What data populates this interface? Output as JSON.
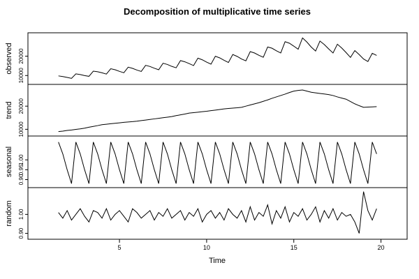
{
  "chart_data": {
    "type": "line",
    "title": "Decomposition of multiplicative time series",
    "xlabel": "Time",
    "xlim": [
      -0.25,
      21.5
    ],
    "xticks": [
      5,
      10,
      15,
      20
    ],
    "color": "#000000",
    "x": [
      1.5,
      1.75,
      2,
      2.25,
      2.5,
      2.75,
      3,
      3.25,
      3.5,
      3.75,
      4,
      4.25,
      4.5,
      4.75,
      5,
      5.25,
      5.5,
      5.75,
      6,
      6.25,
      6.5,
      6.75,
      7,
      7.25,
      7.5,
      7.75,
      8,
      8.25,
      8.5,
      8.75,
      9,
      9.25,
      9.5,
      9.75,
      10,
      10.25,
      10.5,
      10.75,
      11,
      11.25,
      11.5,
      11.75,
      12,
      12.25,
      12.5,
      12.75,
      13,
      13.25,
      13.5,
      13.75,
      14,
      14.25,
      14.5,
      14.75,
      15,
      15.25,
      15.5,
      15.75,
      16,
      16.25,
      16.5,
      16.75,
      17,
      17.25,
      17.5,
      17.75,
      18,
      18.25,
      18.5,
      18.75,
      19,
      19.25,
      19.5,
      19.75
    ],
    "series": [
      {
        "name": "observed",
        "ylim": [
          6500,
          31000
        ],
        "yticks": [
          10000,
          20000
        ],
        "values": [
          9810,
          9480,
          9025,
          8540,
          10850,
          10510,
          9980,
          9590,
          12260,
          11950,
          11400,
          10740,
          13520,
          12980,
          12160,
          11440,
          14330,
          13700,
          12830,
          12100,
          15260,
          14680,
          13780,
          12980,
          16350,
          15710,
          14730,
          13990,
          17710,
          17100,
          16150,
          15140,
          18970,
          18130,
          16910,
          15880,
          19950,
          19110,
          17860,
          16720,
          20870,
          19880,
          18530,
          17600,
          22350,
          21630,
          20430,
          19450,
          24740,
          24100,
          22800,
          21650,
          27470,
          26680,
          25180,
          23580,
          29430,
          27300,
          24700,
          22660,
          27800,
          26010,
          23750,
          21650,
          26160,
          24210,
          21850,
          19360,
          22890,
          20810,
          18530,
          17250,
          21470,
          20390
        ]
      },
      {
        "name": "trend",
        "ylim": [
          8000,
          28500
        ],
        "yticks": [
          10000,
          20000
        ],
        "values": [
          9000,
          9200,
          9500,
          9700,
          9950,
          10200,
          10500,
          10900,
          11250,
          11600,
          12000,
          12200,
          12400,
          12600,
          12800,
          13000,
          13150,
          13300,
          13500,
          13750,
          14000,
          14250,
          14500,
          14750,
          15000,
          15250,
          15500,
          15900,
          16250,
          16600,
          17000,
          17200,
          17400,
          17600,
          17800,
          18050,
          18300,
          18550,
          18800,
          19000,
          19150,
          19300,
          19500,
          20000,
          20500,
          21000,
          21500,
          22100,
          22700,
          23400,
          24000,
          24600,
          25200,
          25900,
          26500,
          26800,
          27000,
          26500,
          26000,
          25750,
          25500,
          25250,
          25000,
          24600,
          24000,
          23500,
          23000,
          22000,
          21000,
          20200,
          19500,
          19600,
          19700,
          19800
        ]
      },
      {
        "name": "seasonal",
        "ylim": [
          0.87,
          1.11
        ],
        "yticks": [
          {
            "value": 0.9,
            "label": "0.90"
          },
          {
            "value": 0.95,
            "label": "0.95"
          },
          {
            "value": 1.0,
            "label": "1.00"
          }
        ],
        "values": [
          1.09,
          1.03,
          0.95,
          0.88,
          1.09,
          1.03,
          0.95,
          0.88,
          1.09,
          1.03,
          0.95,
          0.88,
          1.09,
          1.03,
          0.95,
          0.88,
          1.09,
          1.03,
          0.95,
          0.88,
          1.09,
          1.03,
          0.95,
          0.88,
          1.09,
          1.03,
          0.95,
          0.88,
          1.09,
          1.03,
          0.95,
          0.88,
          1.09,
          1.03,
          0.95,
          0.88,
          1.09,
          1.03,
          0.95,
          0.88,
          1.09,
          1.03,
          0.95,
          0.88,
          1.09,
          1.03,
          0.95,
          0.88,
          1.09,
          1.03,
          0.95,
          0.88,
          1.09,
          1.03,
          0.95,
          0.88,
          1.09,
          1.03,
          0.95,
          0.88,
          1.09,
          1.03,
          0.95,
          0.88,
          1.09,
          1.03,
          0.95,
          0.88,
          1.09,
          1.03,
          0.95,
          0.88,
          1.09,
          1.03
        ]
      },
      {
        "name": "random",
        "ylim": [
          0.88,
          1.13
        ],
        "yticks": [
          {
            "value": 0.9,
            "label": "0.90"
          },
          {
            "value": 1.0,
            "label": "1.00"
          }
        ],
        "values": [
          1.01,
          0.98,
          1.02,
          0.97,
          1.0,
          1.03,
          0.99,
          0.96,
          1.02,
          1.01,
          0.98,
          1.03,
          0.97,
          1.0,
          1.02,
          0.99,
          0.96,
          1.03,
          1.01,
          0.98,
          1.0,
          1.02,
          0.97,
          1.01,
          0.99,
          1.03,
          0.98,
          1.0,
          1.02,
          0.97,
          1.01,
          0.99,
          1.03,
          0.96,
          1.0,
          1.02,
          0.98,
          1.01,
          0.97,
          1.03,
          1.0,
          0.98,
          1.02,
          0.96,
          1.04,
          0.97,
          1.01,
          0.99,
          1.05,
          0.95,
          1.02,
          0.98,
          1.04,
          0.96,
          1.01,
          0.99,
          1.03,
          0.97,
          1.0,
          1.04,
          0.96,
          1.02,
          0.98,
          1.03,
          0.97,
          1.01,
          0.99,
          1.0,
          0.96,
          0.9,
          1.12,
          1.02,
          0.97,
          1.03
        ]
      }
    ]
  }
}
